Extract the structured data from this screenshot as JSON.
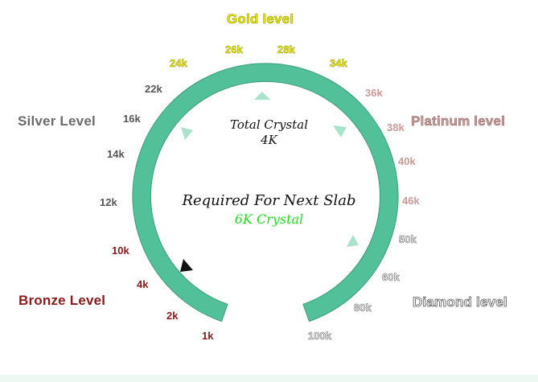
{
  "colors": {
    "ring": "#52c19a",
    "ring_stroke": "#3a9c7b",
    "marker": "#a9e3cc",
    "pointer": "#111111",
    "gold": "#e8e800",
    "silver": "#6b6b6b",
    "platinum": "#c89a9a",
    "bronze": "#8b1a1a",
    "diamond": "#ffffff",
    "required_value": "#22dd22"
  },
  "levels": {
    "gold": "Gold level",
    "silver": "Silver Level",
    "platinum": "Platinum level",
    "bronze": "Bronze Level",
    "diamond": "Diamond level"
  },
  "ticks": {
    "t1k": "1k",
    "t2k": "2k",
    "t4k": "4k",
    "t10k": "10k",
    "t12k": "12k",
    "t14k": "14k",
    "t16k": "16k",
    "t22k": "22k",
    "t24k": "24k",
    "t26k": "26k",
    "t28k": "28k",
    "t34k": "34k",
    "t36k": "36k",
    "t38k": "38k",
    "t40k": "40k",
    "t46k": "46k",
    "t50k": "50k",
    "t60k": "60k",
    "t80k": "80k",
    "t100k": "100k"
  },
  "center": {
    "total_label": "Total Crystal",
    "total_value": "4K",
    "required_label": "Required For Next Slab",
    "required_value": "6K Crystal"
  }
}
